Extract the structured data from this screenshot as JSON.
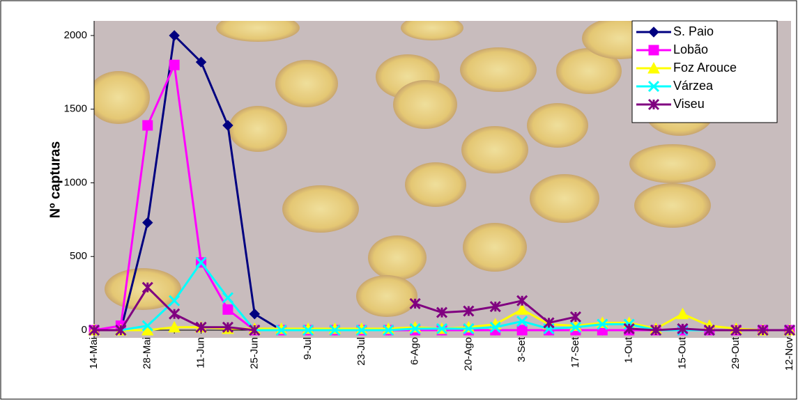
{
  "chart_data": {
    "type": "line",
    "y_label": "Nº capturas",
    "categories": [
      "14-Mai",
      null,
      "28-Mai",
      null,
      "11-Jun",
      null,
      "25-Jun",
      null,
      "9-Jul",
      null,
      "23-Jul",
      null,
      "6-Ago",
      null,
      "20-Ago",
      null,
      "3-Set",
      null,
      "17-Set",
      null,
      "1-Out",
      null,
      "15-Out",
      null,
      "29-Out",
      null,
      "12-Nov"
    ],
    "ylim": [
      0,
      2000
    ],
    "yticks": [
      0,
      500,
      1000,
      1500,
      2000
    ],
    "legend": "top-right",
    "series": [
      {
        "name": "S. Paio",
        "color": "#000080",
        "marker": "diamond",
        "values": [
          0,
          0,
          730,
          2000,
          1820,
          1390,
          110,
          0,
          0,
          0,
          0,
          0,
          0,
          0,
          0,
          0,
          0,
          0,
          0,
          0,
          0,
          0,
          0,
          0,
          0,
          0,
          0
        ]
      },
      {
        "name": "Lobão",
        "color": "#ff00ff",
        "marker": "square",
        "values": [
          0,
          30,
          1390,
          1800,
          460,
          140,
          0,
          0,
          0,
          0,
          0,
          0,
          0,
          0,
          0,
          0,
          0,
          0,
          0,
          0,
          0,
          0,
          0,
          0,
          0,
          0,
          0
        ]
      },
      {
        "name": "Foz Arouce",
        "color": "#ffff00",
        "marker": "triangle",
        "values": [
          0,
          0,
          0,
          20,
          20,
          10,
          10,
          10,
          10,
          10,
          10,
          10,
          20,
          10,
          20,
          40,
          140,
          40,
          30,
          50,
          50,
          10,
          110,
          30,
          10,
          0,
          0
        ]
      },
      {
        "name": "Várzea",
        "color": "#00ffff",
        "marker": "x",
        "values": [
          0,
          0,
          30,
          200,
          460,
          220,
          0,
          0,
          0,
          0,
          0,
          0,
          10,
          10,
          10,
          20,
          60,
          10,
          20,
          40,
          40,
          0,
          0,
          0,
          0,
          0,
          0
        ]
      },
      {
        "name": "Viseu",
        "color": "#800080",
        "marker": "star",
        "values": [
          0,
          0,
          290,
          110,
          20,
          20,
          0,
          null,
          null,
          null,
          null,
          null,
          180,
          120,
          130,
          160,
          200,
          50,
          90,
          null,
          10,
          0,
          10,
          0,
          0,
          0,
          0
        ]
      }
    ]
  }
}
